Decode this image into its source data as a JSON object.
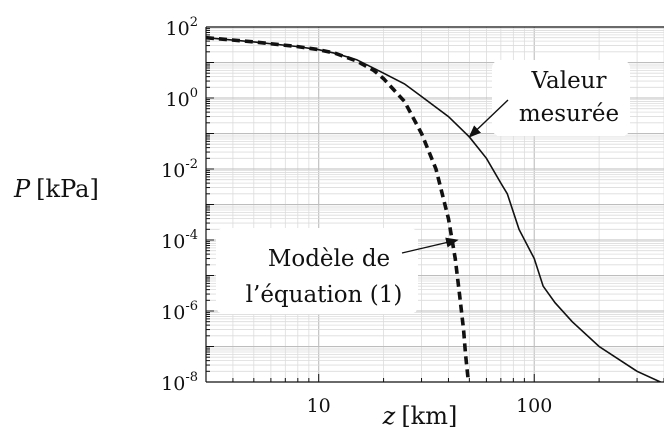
{
  "chart_data": {
    "type": "line",
    "xscale": "log",
    "yscale": "log",
    "xlim": [
      3,
      400
    ],
    "ylim": [
      1e-08,
      100
    ],
    "grid": true,
    "xlabel_symbol": "z",
    "xlabel_unit": "[km]",
    "ylabel_symbol": "P",
    "ylabel_unit": "[kPa]",
    "x_ticks": [
      {
        "value": 10,
        "label": "10"
      },
      {
        "value": 100,
        "label": "100"
      }
    ],
    "y_ticks": [
      {
        "value": 100,
        "base": "10",
        "exp": "2"
      },
      {
        "value": 1,
        "base": "10",
        "exp": "0"
      },
      {
        "value": 0.01,
        "base": "10",
        "exp": "-2"
      },
      {
        "value": 0.0001,
        "base": "10",
        "exp": "-4"
      },
      {
        "value": 1e-06,
        "base": "10",
        "exp": "-6"
      },
      {
        "value": 1e-08,
        "base": "10",
        "exp": "-8"
      }
    ],
    "series": [
      {
        "name": "",
        "style": "solid",
        "color": "#111111",
        "x": [
          3,
          5,
          8,
          10,
          12,
          15,
          20,
          25,
          30,
          40,
          50,
          60,
          70,
          75,
          85,
          100,
          110,
          125,
          150,
          200,
          300,
          400
        ],
        "y": [
          50,
          38,
          28,
          23,
          18,
          12,
          5,
          2.5,
          1.1,
          0.3,
          0.08,
          0.02,
          0.004,
          0.002,
          0.0002,
          3e-05,
          5e-06,
          1.7e-06,
          5e-07,
          1e-07,
          2e-08,
          9e-09
        ]
      },
      {
        "name": "",
        "style": "dashed",
        "color": "#111111",
        "x": [
          3,
          5,
          8,
          10,
          12,
          15,
          18,
          20,
          25,
          30,
          35,
          40,
          43,
          45,
          47,
          48,
          49.5
        ],
        "y": [
          50,
          38,
          28,
          23,
          18,
          11,
          6,
          3.5,
          0.8,
          0.1,
          0.01,
          0.0004,
          3e-05,
          3e-06,
          3e-07,
          6e-08,
          1e-08
        ]
      }
    ],
    "annotations": [
      {
        "lines": [
          "Valeur",
          "mesurée"
        ],
        "target": [
          50,
          0.08
        ]
      },
      {
        "lines": [
          "Modèle de",
          "l’équation (1)"
        ],
        "target": [
          44,
          0.0001
        ]
      }
    ]
  }
}
